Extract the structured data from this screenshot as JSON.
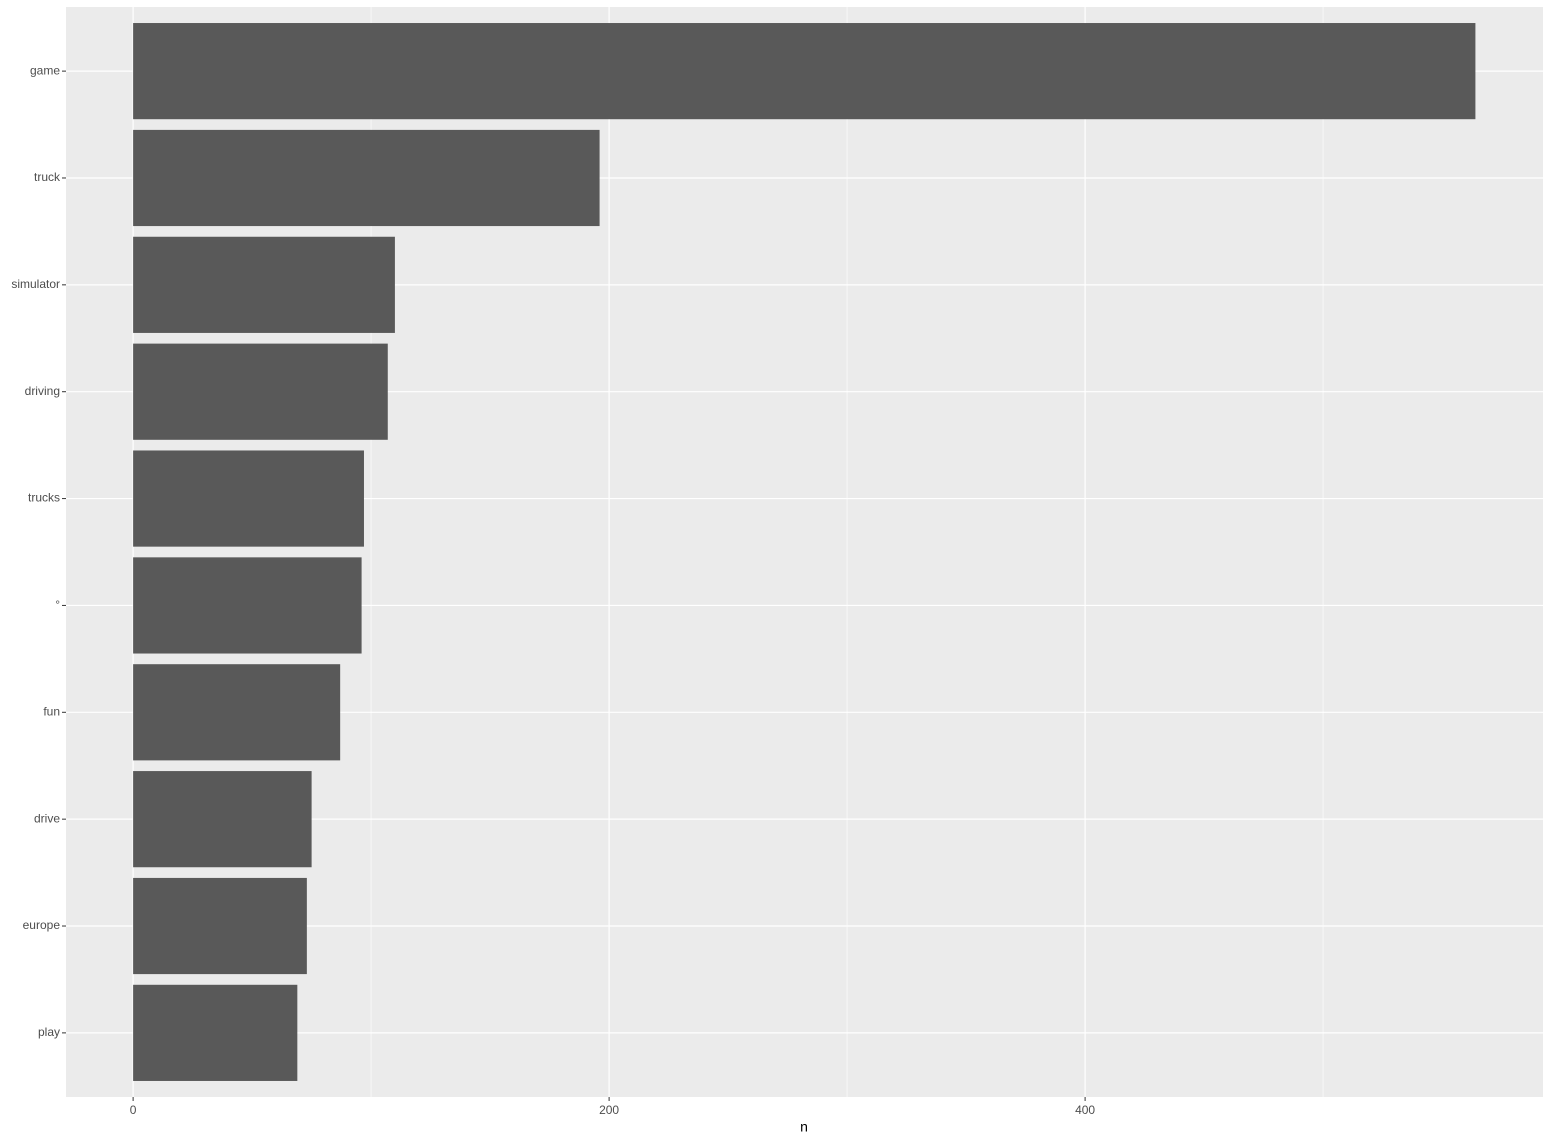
{
  "chart_data": {
    "type": "bar",
    "orientation": "horizontal",
    "categories": [
      "game",
      "truck",
      "simulator",
      "driving",
      "trucks",
      "°",
      "fun",
      "drive",
      "europe",
      "play"
    ],
    "values": [
      564,
      196,
      110,
      107,
      97,
      96,
      87,
      75,
      73,
      69
    ],
    "color": "#595959",
    "xlabel": "n",
    "xlim": [
      -28.2,
      592.4
    ],
    "xticks": [
      0,
      200,
      400
    ],
    "x_minor_grid": [
      100,
      300,
      500
    ],
    "grid": true
  }
}
